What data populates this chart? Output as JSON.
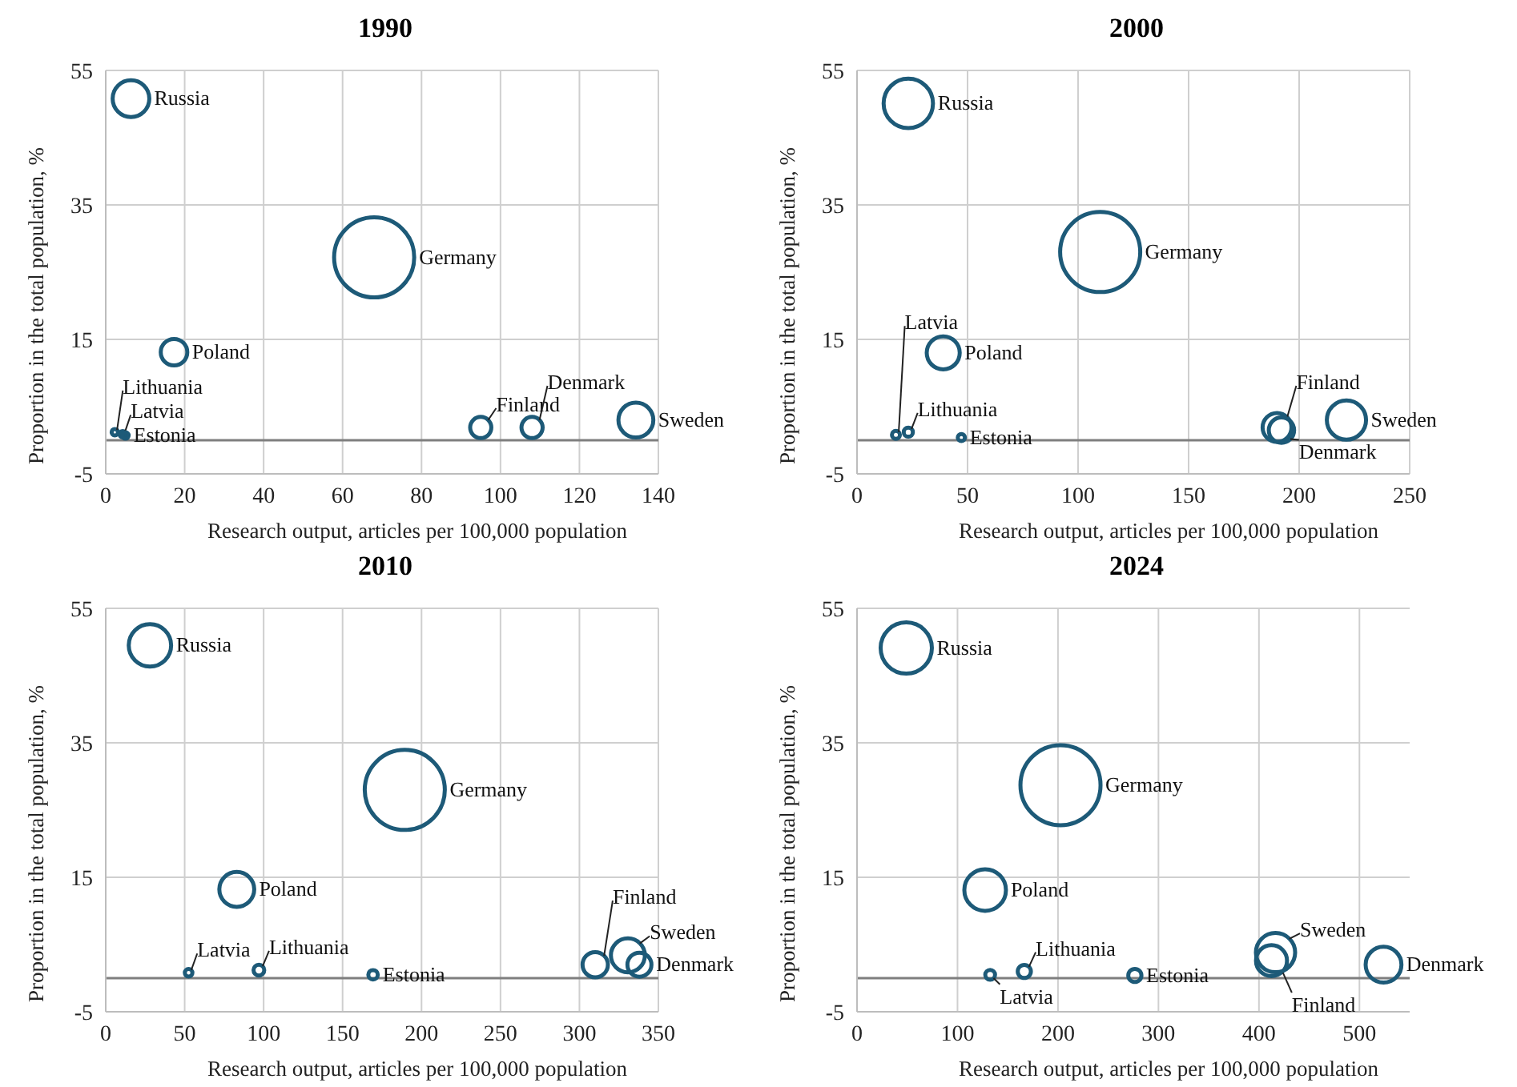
{
  "chart_data": [
    {
      "type": "bubble",
      "title": "1990",
      "xlabel": "Research output, articles per 100,000 population",
      "ylabel": "Proportion in the total population, %",
      "xlim": [
        0,
        140
      ],
      "xticks": [
        0,
        20,
        40,
        60,
        80,
        100,
        120,
        140
      ],
      "ylim": [
        -5,
        55
      ],
      "yticks": [
        -5,
        15,
        35,
        55
      ],
      "grid": true,
      "ref_lines": [
        {
          "axis": "y",
          "value": 0,
          "color": "#7f7f7f"
        }
      ],
      "series": [
        {
          "color": "#1d5a78",
          "x": [
            6.4,
            68,
            17.3,
            2.3,
            4.3,
            5,
            95,
            108,
            134.3
          ],
          "values": [
            50.8,
            27.2,
            13.1,
            1.2,
            0.9,
            0.7,
            1.9,
            1.9,
            3
          ],
          "sizes": [
            0.21,
            1,
            0.11,
            0.005,
            0.005,
            0.005,
            0.07,
            0.07,
            0.19
          ],
          "value_labels": [
            "Russia",
            "Germany",
            "Poland",
            "Lithuania",
            "Latvia",
            "Estonia",
            "Finland",
            "Denmark",
            "Sweden"
          ]
        }
      ]
    },
    {
      "type": "bubble",
      "title": "2000",
      "xlabel": "Research output, articles per 100,000 population",
      "ylabel": "Proportion in the total population, %",
      "xlim": [
        0,
        250
      ],
      "xticks": [
        0,
        50,
        100,
        150,
        200,
        250
      ],
      "ylim": [
        -5,
        55
      ],
      "yticks": [
        -5,
        15,
        35,
        55
      ],
      "grid": true,
      "ref_lines": [
        {
          "axis": "y",
          "value": 0,
          "color": "#7f7f7f"
        }
      ],
      "series": [
        {
          "color": "#1d5a78",
          "x": [
            23.2,
            110,
            39,
            23.2,
            17.6,
            47.2,
            190,
            192,
            221.4
          ],
          "values": [
            50.1,
            28,
            13,
            1.2,
            0.8,
            0.4,
            1.9,
            1.5,
            3
          ],
          "sizes": [
            0.38,
            1,
            0.17,
            0.013,
            0.01,
            0.008,
            0.13,
            0.1,
            0.24
          ],
          "value_labels": [
            "Russia",
            "Germany",
            "Poland",
            "Lithuania",
            "Latvia",
            "Estonia",
            "Finland",
            "Denmark",
            "Sweden"
          ]
        }
      ]
    },
    {
      "type": "bubble",
      "title": "2010",
      "xlabel": "Research output, articles per 100,000 population",
      "ylabel": "Proportion in the total population, %",
      "xlim": [
        0,
        350
      ],
      "xticks": [
        0,
        50,
        100,
        150,
        200,
        250,
        300,
        350
      ],
      "ylim": [
        -5,
        55
      ],
      "yticks": [
        -5,
        15,
        35,
        55
      ],
      "grid": true,
      "ref_lines": [
        {
          "axis": "y",
          "value": 0,
          "color": "#7f7f7f"
        }
      ],
      "series": [
        {
          "color": "#1d5a78",
          "x": [
            28,
            189.4,
            83,
            97,
            52.5,
            169.3,
            310,
            338,
            330.7
          ],
          "values": [
            49.5,
            28,
            13.2,
            1.2,
            0.8,
            0.5,
            2,
            2,
            3.4
          ],
          "sizes": [
            0.28,
            1,
            0.19,
            0.018,
            0.009,
            0.014,
            0.1,
            0.09,
            0.18
          ],
          "value_labels": [
            "Russia",
            "Germany",
            "Poland",
            "Lithuania",
            "Latvia",
            "Estonia",
            "Finland",
            "Denmark",
            "Sweden"
          ]
        }
      ]
    },
    {
      "type": "bubble",
      "title": "2024",
      "xlabel": "Research output, articles per 100,000 population",
      "ylabel": "Proportion in the total population, %",
      "xlim": [
        0,
        550
      ],
      "xticks": [
        0,
        100,
        200,
        300,
        400,
        500
      ],
      "ylim": [
        -5,
        55
      ],
      "yticks": [
        -5,
        15,
        35,
        55
      ],
      "grid": true,
      "ref_lines": [
        {
          "axis": "y",
          "value": 0,
          "color": "#7f7f7f"
        }
      ],
      "series": [
        {
          "color": "#1d5a78",
          "x": [
            49,
            202.5,
            127.5,
            166.5,
            132.5,
            276.5,
            412.5,
            524,
            416.5
          ],
          "values": [
            49.1,
            28.7,
            13.1,
            1,
            0.5,
            0.4,
            2.6,
            2,
            3.8
          ],
          "sizes": [
            0.41,
            1,
            0.27,
            0.027,
            0.015,
            0.027,
            0.15,
            0.2,
            0.24
          ],
          "value_labels": [
            "Russia",
            "Germany",
            "Poland",
            "Lithuania",
            "Latvia",
            "Estonia",
            "Finland",
            "Denmark",
            "Sweden"
          ]
        }
      ]
    }
  ]
}
